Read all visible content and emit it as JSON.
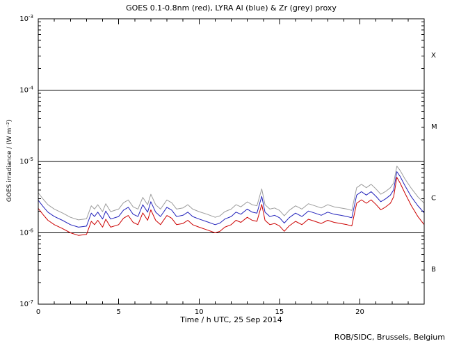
{
  "title": "GOES 0.1-0.8nm (red), LYRA Al (blue) & Zr (grey) proxy",
  "footer": "ROB/SIDC, Brussels, Belgium",
  "colors": {
    "goes_red": "#cc0000",
    "lyra_al_blue": "#2222bb",
    "lyra_zr_grey": "#9c9c9c",
    "axis": "#000000",
    "background": "#ffffff"
  },
  "chart_data": {
    "type": "line",
    "title": "GOES 0.1-0.8nm (red), LYRA Al (blue) & Zr (grey) proxy",
    "xlabel": "Time / h UTC, 25 Sep 2014",
    "ylabel": "GOES irradiance / (W m⁻²)",
    "xlim": [
      0,
      24
    ],
    "ylim": [
      1e-07,
      0.001
    ],
    "y_scale": "log",
    "x_major_ticks": [
      0,
      5,
      10,
      15,
      20
    ],
    "x_minor_step": 1,
    "y_tick_exponents": [
      -3,
      -4,
      -5,
      -6,
      -7
    ],
    "hlines": [
      0.0001,
      1e-05,
      1e-06
    ],
    "flux_classes": [
      {
        "label": "X",
        "flux": 0.000316
      },
      {
        "label": "M",
        "flux": 3.16e-05
      },
      {
        "label": "C",
        "flux": 3.16e-06
      },
      {
        "label": "B",
        "flux": 3.16e-07
      }
    ],
    "grid": false,
    "legend": "colors named in title",
    "values_scale": 1e-06,
    "values_unit": "1e-6 W m^-2",
    "x": [
      0,
      0.3,
      0.6,
      1,
      1.5,
      2,
      2.5,
      3,
      3.3,
      3.5,
      3.7,
      4,
      4.2,
      4.5,
      5,
      5.3,
      5.6,
      5.9,
      6.2,
      6.5,
      6.8,
      7,
      7.3,
      7.6,
      8,
      8.3,
      8.6,
      9,
      9.3,
      9.6,
      10,
      10.5,
      11,
      11.3,
      11.6,
      12,
      12.3,
      12.6,
      13,
      13.3,
      13.6,
      13.9,
      14.1,
      14.4,
      14.7,
      15,
      15.3,
      15.6,
      16,
      16.4,
      16.8,
      17.2,
      17.6,
      18,
      18.4,
      18.8,
      19.2,
      19.5,
      19.8,
      20.1,
      20.4,
      20.7,
      21,
      21.3,
      21.6,
      21.9,
      22.1,
      22.3,
      22.5,
      22.8,
      23.2,
      23.6,
      24
    ],
    "series": [
      {
        "id": "goes-red",
        "name": "GOES 0.1-0.8nm",
        "color": "#cc0000",
        "values": [
          2.2,
          1.8,
          1.5,
          1.3,
          1.15,
          1.0,
          0.92,
          0.95,
          1.45,
          1.3,
          1.5,
          1.2,
          1.55,
          1.2,
          1.3,
          1.6,
          1.75,
          1.4,
          1.3,
          1.9,
          1.5,
          2.1,
          1.5,
          1.3,
          1.75,
          1.6,
          1.3,
          1.35,
          1.5,
          1.3,
          1.2,
          1.1,
          1.0,
          1.05,
          1.2,
          1.3,
          1.5,
          1.4,
          1.65,
          1.5,
          1.45,
          2.5,
          1.5,
          1.3,
          1.35,
          1.25,
          1.05,
          1.25,
          1.45,
          1.3,
          1.55,
          1.45,
          1.35,
          1.5,
          1.4,
          1.35,
          1.3,
          1.25,
          2.6,
          2.9,
          2.6,
          2.9,
          2.5,
          2.1,
          2.3,
          2.6,
          3.2,
          6.0,
          5.0,
          3.6,
          2.4,
          1.7,
          1.3
        ]
      },
      {
        "id": "lyra-al-blue",
        "name": "LYRA Al proxy",
        "color": "#2222bb",
        "values": [
          2.86,
          2.34,
          1.95,
          1.69,
          1.5,
          1.3,
          1.2,
          1.24,
          1.89,
          1.69,
          1.95,
          1.56,
          2.02,
          1.56,
          1.69,
          2.08,
          2.28,
          1.82,
          1.69,
          2.47,
          1.95,
          2.73,
          1.95,
          1.69,
          2.28,
          2.08,
          1.69,
          1.76,
          1.95,
          1.69,
          1.56,
          1.43,
          1.3,
          1.37,
          1.56,
          1.69,
          1.95,
          1.82,
          2.15,
          1.95,
          1.89,
          3.25,
          1.95,
          1.69,
          1.76,
          1.63,
          1.37,
          1.63,
          1.89,
          1.69,
          2.02,
          1.89,
          1.76,
          1.95,
          1.82,
          1.76,
          1.69,
          1.63,
          3.38,
          3.77,
          3.38,
          3.77,
          3.25,
          2.73,
          2.99,
          3.38,
          4.0,
          7.2,
          6.2,
          4.6,
          3.2,
          2.4,
          1.9
        ]
      },
      {
        "id": "lyra-zr-grey",
        "name": "LYRA Zr proxy",
        "color": "#9c9c9c",
        "values": [
          3.63,
          2.97,
          2.48,
          2.15,
          1.9,
          1.65,
          1.52,
          1.57,
          2.39,
          2.15,
          2.48,
          1.98,
          2.56,
          1.98,
          2.15,
          2.64,
          2.89,
          2.31,
          2.15,
          3.14,
          2.48,
          3.47,
          2.48,
          2.15,
          2.89,
          2.64,
          2.15,
          2.23,
          2.48,
          2.15,
          1.98,
          1.82,
          1.65,
          1.73,
          1.98,
          2.15,
          2.48,
          2.31,
          2.72,
          2.48,
          2.39,
          4.13,
          2.48,
          2.15,
          2.23,
          2.06,
          1.73,
          2.06,
          2.39,
          2.15,
          2.56,
          2.39,
          2.23,
          2.48,
          2.31,
          2.23,
          2.15,
          2.06,
          4.29,
          4.79,
          4.29,
          4.79,
          4.13,
          3.47,
          3.8,
          4.29,
          5.0,
          8.6,
          7.5,
          5.7,
          4.2,
          3.2,
          2.6
        ]
      }
    ]
  }
}
